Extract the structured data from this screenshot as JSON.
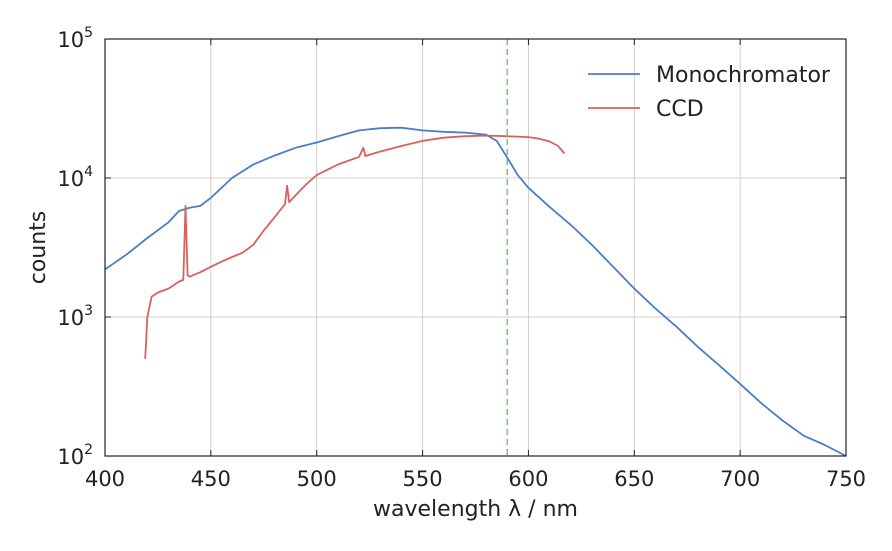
{
  "chart_data": {
    "type": "line",
    "xlabel": "wavelength λ / nm",
    "ylabel": "counts",
    "xlim": [
      400,
      750
    ],
    "ylim": [
      100,
      100000
    ],
    "yscale": "log",
    "grid": true,
    "legend_placement": "top-right",
    "x_ticks": [
      {
        "value": 400,
        "label": "400"
      },
      {
        "value": 450,
        "label": "450"
      },
      {
        "value": 500,
        "label": "500"
      },
      {
        "value": 550,
        "label": "550"
      },
      {
        "value": 600,
        "label": "600"
      },
      {
        "value": 650,
        "label": "650"
      },
      {
        "value": 700,
        "label": "700"
      },
      {
        "value": 750,
        "label": "750"
      }
    ],
    "y_ticks": [
      {
        "value": 100,
        "base": "10",
        "exp": "2"
      },
      {
        "value": 1000,
        "base": "10",
        "exp": "3"
      },
      {
        "value": 10000,
        "base": "10",
        "exp": "4"
      },
      {
        "value": 100000,
        "base": "10",
        "exp": "5"
      }
    ],
    "reference_line": {
      "x": 590,
      "color": "#77c97a",
      "style": "dashed"
    },
    "series": [
      {
        "name": "Monochromator",
        "color": "#4a7fc4",
        "x": [
          400,
          410,
          420,
          430,
          435,
          440,
          445,
          450,
          460,
          470,
          480,
          490,
          500,
          510,
          520,
          530,
          540,
          550,
          560,
          570,
          580,
          585,
          590,
          595,
          600,
          610,
          620,
          630,
          640,
          650,
          660,
          670,
          680,
          690,
          700,
          710,
          720,
          730,
          740,
          750
        ],
        "y": [
          2200,
          2800,
          3700,
          4800,
          5800,
          6100,
          6300,
          7200,
          10000,
          12500,
          14500,
          16500,
          18000,
          20000,
          22000,
          22800,
          23000,
          22000,
          21500,
          21200,
          20500,
          18500,
          14000,
          10500,
          8500,
          6200,
          4600,
          3300,
          2300,
          1600,
          1150,
          850,
          610,
          450,
          330,
          240,
          180,
          140,
          120,
          100
        ]
      },
      {
        "name": "CCD",
        "color": "#d9605e",
        "x": [
          419,
          420,
          422,
          425,
          430,
          435,
          437,
          438,
          439,
          440,
          445,
          450,
          455,
          460,
          465,
          470,
          475,
          480,
          485,
          486,
          487,
          490,
          495,
          500,
          510,
          520,
          522,
          523,
          530,
          540,
          550,
          560,
          570,
          580,
          590,
          600,
          605,
          610,
          614,
          617
        ],
        "y": [
          500,
          1000,
          1400,
          1500,
          1600,
          1800,
          1850,
          6300,
          2000,
          1950,
          2100,
          2300,
          2500,
          2700,
          2900,
          3300,
          4200,
          5200,
          6500,
          8800,
          6700,
          7500,
          9000,
          10500,
          12500,
          14200,
          16500,
          14400,
          15500,
          17000,
          18500,
          19500,
          20000,
          20200,
          20000,
          19700,
          19200,
          18300,
          17000,
          15000
        ]
      }
    ]
  }
}
